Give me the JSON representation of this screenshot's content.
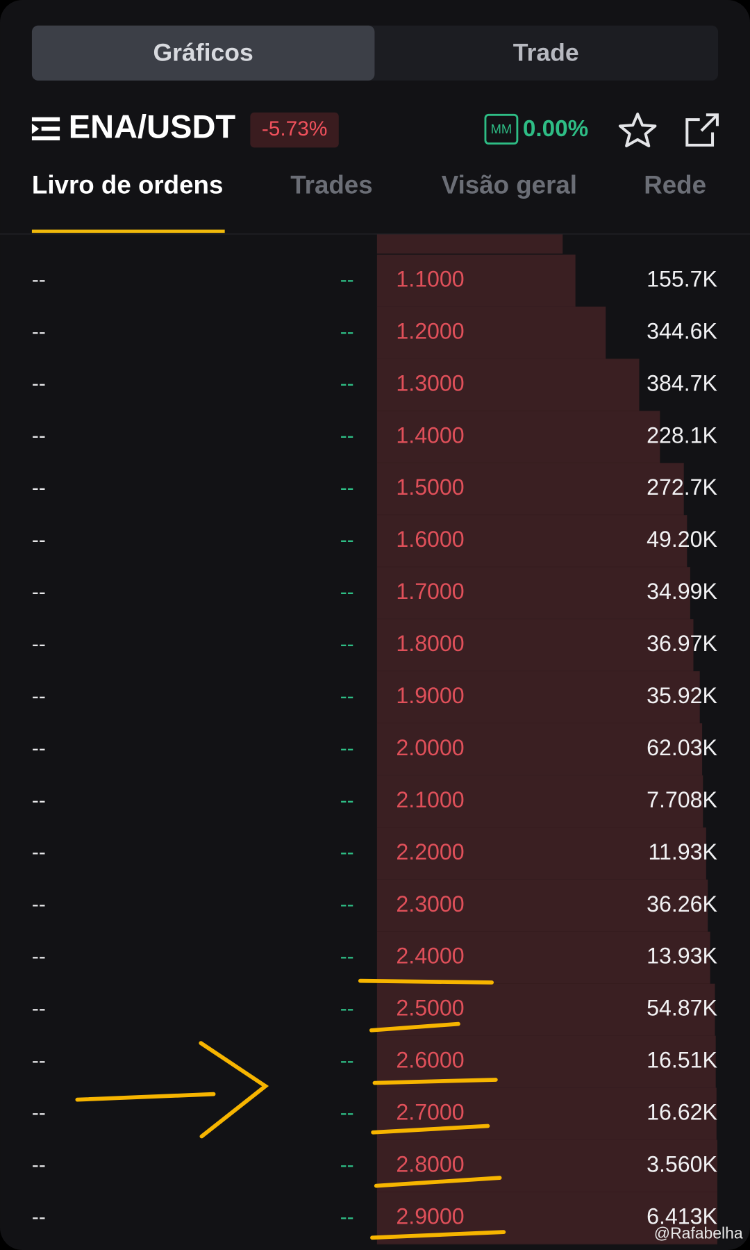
{
  "tabs": [
    "Gráficos",
    "Trade"
  ],
  "header": {
    "pair": "ENA/USDT",
    "change": "-5.73%",
    "mm_badge": "MM",
    "mm_value": "0.00%"
  },
  "subtabs": [
    "Livro de ordens",
    "Trades",
    "Visão geral",
    "Rede"
  ],
  "order_book": {
    "rows": [
      [
        "--",
        "--",
        "1.1000",
        "155.7K"
      ],
      [
        "--",
        "--",
        "1.2000",
        "344.6K"
      ],
      [
        "--",
        "--",
        "1.3000",
        "384.7K"
      ],
      [
        "--",
        "--",
        "1.4000",
        "228.1K"
      ],
      [
        "--",
        "--",
        "1.5000",
        "272.7K"
      ],
      [
        "--",
        "--",
        "1.6000",
        "49.20K"
      ],
      [
        "--",
        "--",
        "1.7000",
        "34.99K"
      ],
      [
        "--",
        "--",
        "1.8000",
        "36.97K"
      ],
      [
        "--",
        "--",
        "1.9000",
        "35.92K"
      ],
      [
        "--",
        "--",
        "2.0000",
        "62.03K"
      ],
      [
        "--",
        "--",
        "2.1000",
        "7.708K"
      ],
      [
        "--",
        "--",
        "2.2000",
        "11.93K"
      ],
      [
        "--",
        "--",
        "2.3000",
        "36.26K"
      ],
      [
        "--",
        "--",
        "2.4000",
        "13.93K"
      ],
      [
        "--",
        "--",
        "2.5000",
        "54.87K"
      ],
      [
        "--",
        "--",
        "2.6000",
        "16.51K"
      ],
      [
        "--",
        "--",
        "2.7000",
        "16.62K"
      ],
      [
        "--",
        "--",
        "2.8000",
        "3.560K"
      ],
      [
        "--",
        "--",
        "2.9000",
        "6.413K"
      ]
    ]
  },
  "watermark": "@Rafabelha"
}
